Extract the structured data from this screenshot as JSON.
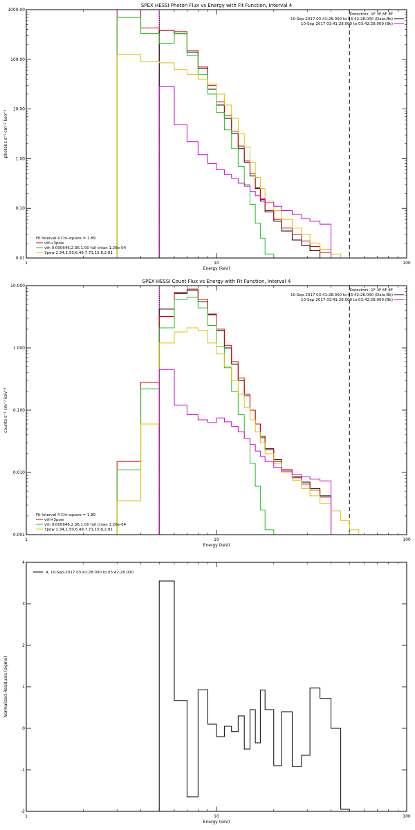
{
  "chart_data": [
    {
      "type": "line",
      "title": "SPEX HESSI Photon Flux vs Energy with Fit Function, Interval 4",
      "xlabel": "Energy (keV)",
      "ylabel": "photons s⁻¹ cm⁻² keV⁻¹",
      "xscale": "log",
      "yscale": "log",
      "xlim": [
        1,
        100
      ],
      "ylim": [
        0.01,
        1000
      ],
      "xticks": [
        {
          "v": 1,
          "label": "1"
        },
        {
          "v": 10,
          "label": "10"
        },
        {
          "v": 100,
          "label": "100"
        }
      ],
      "yticks": [
        {
          "v": 0.01,
          "label": "0.01"
        },
        {
          "v": 0.1,
          "label": "0.10"
        },
        {
          "v": 1,
          "label": "1.00"
        },
        {
          "v": 10,
          "label": "10.00"
        },
        {
          "v": 100,
          "label": "100.00"
        },
        {
          "v": 1000,
          "label": "1000.00"
        }
      ],
      "vlines": [
        {
          "x": 5,
          "color": "#d000d0",
          "style": "solid"
        },
        {
          "x": 5,
          "color": "#000000",
          "style": "dotted"
        },
        {
          "x": 50,
          "color": "#000000",
          "style": "dashed"
        }
      ],
      "edges": [
        3,
        4,
        5,
        6,
        7,
        8,
        9,
        10,
        11,
        12,
        13,
        14,
        15,
        16,
        17,
        18,
        20,
        22,
        25,
        28,
        31,
        35,
        40,
        45,
        50,
        56
      ],
      "series": [
        {
          "name": "",
          "color": "#000000",
          "values": [
            null,
            null,
            380,
            330,
            140,
            65,
            25,
            12,
            6.5,
            3.2,
            1.6,
            0.85,
            0.45,
            0.25,
            0.14,
            0.085,
            0.055,
            0.035,
            0.023,
            0.018,
            0.014,
            null,
            null,
            null,
            null
          ]
        },
        {
          "name": "vth+3pow",
          "color": "#d00000",
          "values": [
            1000,
            430,
            380,
            360,
            150,
            70,
            30,
            14,
            7.5,
            3.6,
            1.8,
            0.9,
            0.5,
            0.26,
            0.15,
            0.09,
            0.06,
            0.04,
            0.03,
            0.022,
            0.017,
            0.013,
            null,
            null,
            null
          ]
        },
        {
          "name": "vth 0.000646,2.36,1.00  full chian 1.26e-04",
          "color": "#20c020",
          "values": [
            700,
            330,
            210,
            330,
            120,
            50,
            20,
            8.5,
            3.8,
            1.6,
            0.7,
            0.3,
            0.12,
            0.05,
            0.025,
            0.012,
            null,
            null,
            null,
            null,
            null,
            null,
            null,
            null,
            null
          ]
        },
        {
          "name": "3pow 2.34,1.50,6.49,7.71,15.8,2.81",
          "color": "#e0c000",
          "values": [
            125,
            90,
            85,
            62,
            50,
            40,
            32,
            20,
            12,
            6.5,
            3.2,
            1.7,
            0.85,
            0.42,
            0.25,
            0.14,
            0.09,
            0.06,
            0.04,
            0.03,
            0.02,
            0.015,
            0.012,
            0.009,
            null
          ]
        },
        {
          "name": "",
          "color": "#d000d0",
          "values": [
            null,
            null,
            28,
            4.8,
            2.2,
            1.2,
            0.8,
            0.6,
            0.48,
            0.4,
            0.32,
            0.28,
            0.22,
            0.18,
            0.16,
            0.13,
            0.11,
            0.09,
            0.075,
            0.062,
            0.055,
            0.048,
            null,
            null,
            null
          ]
        }
      ],
      "legend_top_right": [
        {
          "text": "Detectors: 1F 3F 6F 8F",
          "color": ""
        },
        {
          "text": "10-Sep-2017 03:41:28.000 to 03:42:28.000 (Data-Bk)",
          "color": "#000000"
        },
        {
          "text": "10-Sep-2017 03:41:28.000 to 03:42:28.000 (Bk)",
          "color": "#d000d0"
        }
      ],
      "legend_bottom_left": [
        {
          "text": "Fit Interval 4   Chi-square = 1.89",
          "color": ""
        },
        {
          "text": "vth+3pow",
          "color": "#d00000"
        },
        {
          "text": "vth 0.000646,2.36,1.00  full chian 1.26e-04",
          "color": "#20c020"
        },
        {
          "text": "3pow 2.34,1.50,6.49,7.71,15.8,2.81",
          "color": "#e0c000"
        }
      ]
    },
    {
      "type": "line",
      "title": "SPEX HESSI Count Flux vs Energy with Fit Function, Interval 4",
      "xlabel": "Energy (keV)",
      "ylabel": "counts s⁻¹ cm⁻² keV⁻¹",
      "xscale": "log",
      "yscale": "log",
      "xlim": [
        1,
        100
      ],
      "ylim": [
        0.001,
        10
      ],
      "xticks": [
        {
          "v": 1,
          "label": "1"
        },
        {
          "v": 10,
          "label": "10"
        },
        {
          "v": 100,
          "label": "100"
        }
      ],
      "yticks": [
        {
          "v": 0.001,
          "label": "0.001"
        },
        {
          "v": 0.01,
          "label": "0.010"
        },
        {
          "v": 0.1,
          "label": "0.100"
        },
        {
          "v": 1,
          "label": "1.000"
        },
        {
          "v": 10,
          "label": "10.000"
        }
      ],
      "vlines": [
        {
          "x": 5,
          "color": "#d000d0",
          "style": "solid"
        },
        {
          "x": 5,
          "color": "#000000",
          "style": "dotted"
        },
        {
          "x": 50,
          "color": "#000000",
          "style": "dashed"
        }
      ],
      "edges": [
        3,
        4,
        5,
        6,
        7,
        8,
        9,
        10,
        11,
        12,
        13,
        14,
        15,
        16,
        17,
        18,
        20,
        22,
        25,
        28,
        31,
        35,
        40,
        45,
        50,
        56,
        62
      ],
      "series": [
        {
          "name": "",
          "color": "#000000",
          "values": [
            null,
            null,
            4.2,
            7.5,
            8.5,
            5.5,
            3.4,
            1.9,
            1.0,
            0.55,
            0.3,
            0.17,
            0.1,
            0.06,
            0.038,
            0.024,
            0.016,
            0.011,
            0.0085,
            0.007,
            0.0055,
            0.0042,
            null,
            null,
            null,
            null
          ]
        },
        {
          "name": "vth+3pow",
          "color": "#d00000",
          "values": [
            0.015,
            0.28,
            3.2,
            7.8,
            8.8,
            6.0,
            3.5,
            2.0,
            1.1,
            0.6,
            0.33,
            0.18,
            0.1,
            0.06,
            0.036,
            0.023,
            0.015,
            0.011,
            0.0082,
            0.0065,
            0.0052,
            0.004,
            null,
            null,
            null,
            null
          ]
        },
        {
          "name": "vth 0.000646,2.36,1.00  full chian 1.26e-04",
          "color": "#20c020",
          "values": [
            0.011,
            0.22,
            2.1,
            6.0,
            6.5,
            4.4,
            2.3,
            1.05,
            0.48,
            0.2,
            0.085,
            0.035,
            0.014,
            0.006,
            0.0025,
            0.0012,
            null,
            null,
            null,
            null,
            null,
            null,
            null,
            null,
            null,
            null
          ]
        },
        {
          "name": "3pow 2.34,1.50,6.49,7.71,15.8,2.81",
          "color": "#e0c000",
          "values": [
            0.0035,
            0.06,
            1.2,
            1.8,
            2.1,
            1.9,
            1.2,
            0.8,
            0.5,
            0.3,
            0.18,
            0.11,
            0.07,
            0.045,
            0.03,
            0.02,
            0.014,
            0.01,
            0.0075,
            0.0055,
            0.0042,
            0.0032,
            0.0024,
            0.0017,
            0.0012,
            0.001
          ]
        },
        {
          "name": "",
          "color": "#d000d0",
          "values": [
            null,
            null,
            0.45,
            0.12,
            0.085,
            0.07,
            0.063,
            0.075,
            0.065,
            0.055,
            0.045,
            0.035,
            0.028,
            0.022,
            0.018,
            0.015,
            0.012,
            0.0105,
            0.0092,
            0.0085,
            0.0078,
            0.0073,
            null,
            null,
            null,
            null
          ]
        }
      ],
      "legend_top_right": [
        {
          "text": "Detectors: 1F 3F 6F 8F",
          "color": ""
        },
        {
          "text": "10-Sep-2017 03:41:28.000 to 03:42:28.000 (Data-Bk)",
          "color": "#000000"
        },
        {
          "text": "10-Sep-2017 03:41:28.000 to 03:42:28.000 (Bk)",
          "color": "#d000d0"
        }
      ],
      "legend_bottom_left": [
        {
          "text": "Fit Interval 4   Chi-square = 1.89",
          "color": ""
        },
        {
          "text": "vth+3pow",
          "color": "#d00000"
        },
        {
          "text": "vth 0.000646,2.36,1.00  full chian 1.26e-04",
          "color": "#20c020"
        },
        {
          "text": "3pow 2.34,1.50,6.49,7.71,15.8,2.81",
          "color": "#e0c000"
        }
      ]
    },
    {
      "type": "line",
      "title": "",
      "xlabel": "Energy (keV)",
      "ylabel": "Normalized Residuals (sigma)",
      "xscale": "log",
      "yscale": "linear",
      "xlim": [
        1,
        100
      ],
      "ylim": [
        -2,
        4
      ],
      "xticks": [
        {
          "v": 1,
          "label": "1"
        },
        {
          "v": 10,
          "label": "10"
        },
        {
          "v": 100,
          "label": "100"
        }
      ],
      "yticks": [
        {
          "v": -2,
          "label": "-2"
        },
        {
          "v": -1,
          "label": "-1"
        },
        {
          "v": 0,
          "label": "0"
        },
        {
          "v": 1,
          "label": "1"
        },
        {
          "v": 2,
          "label": "2"
        },
        {
          "v": 3,
          "label": "3"
        },
        {
          "v": 4,
          "label": "4"
        }
      ],
      "vlines": [],
      "edges": [
        5,
        6,
        7,
        8,
        9,
        10,
        11,
        12,
        13,
        14,
        15,
        16,
        17,
        18,
        20,
        22,
        25,
        28,
        31,
        35,
        40,
        45,
        50
      ],
      "series": [
        {
          "name": "",
          "color": "#000000",
          "values": [
            3.55,
            0.67,
            -1.65,
            0.93,
            0.1,
            -0.2,
            0.05,
            -0.08,
            0.3,
            -0.5,
            0.45,
            -0.35,
            0.92,
            0.45,
            -0.9,
            0.4,
            -0.92,
            -0.65,
            0.97,
            0.72,
            0.0,
            -1.95
          ]
        }
      ],
      "legend_top_left": [
        {
          "text": "4, 10-Sep-2017 03:41:28.000 to 03:42:28.000",
          "color": "#000000"
        }
      ]
    }
  ]
}
